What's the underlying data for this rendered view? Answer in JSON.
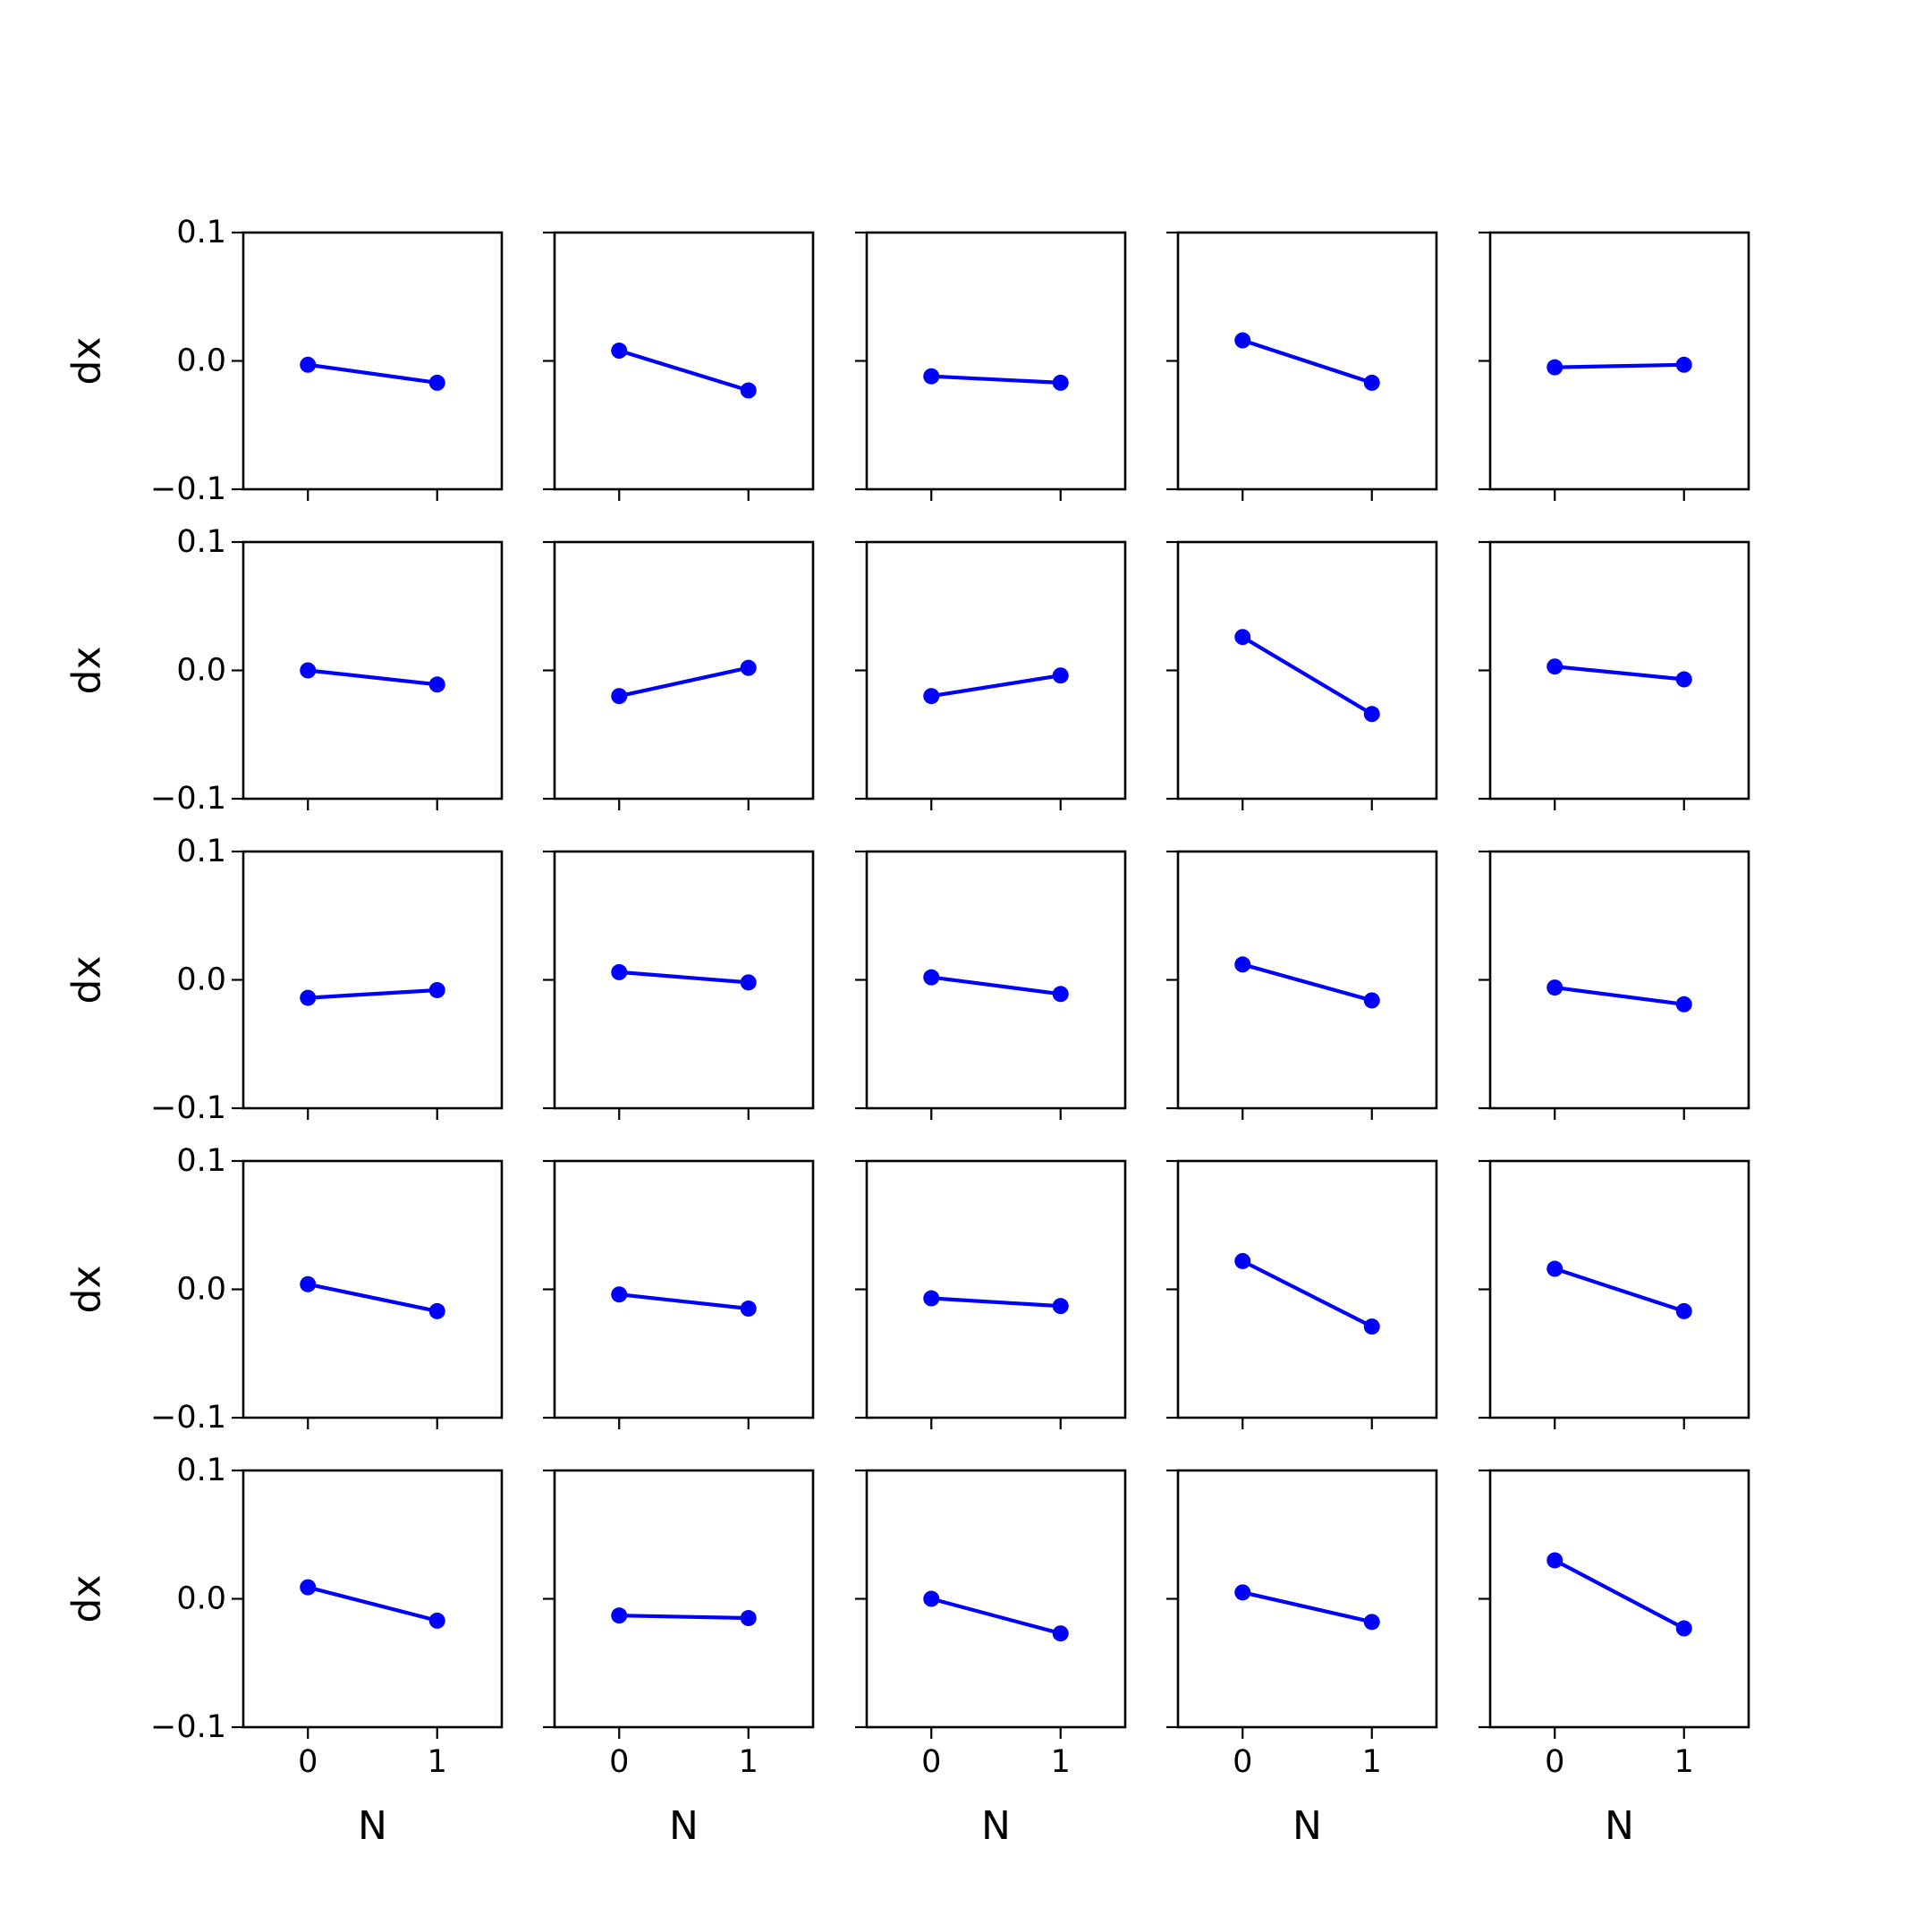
{
  "chart_data": {
    "type": "line",
    "layout": "5x5 small multiples, shared axes",
    "xlabel": "N",
    "ylabel": "dx",
    "x": [
      0,
      1
    ],
    "xticks": [
      "0",
      "1"
    ],
    "yticks": [
      "0.1",
      "0.0",
      "−0.1"
    ],
    "xlim": [
      -0.5,
      1.5
    ],
    "ylim": [
      -0.1,
      0.1
    ],
    "grid": false,
    "series_color": "#0000ff",
    "subplots": [
      [
        {
          "values": [
            -0.003,
            -0.017
          ]
        },
        {
          "values": [
            0.008,
            -0.023
          ]
        },
        {
          "values": [
            -0.012,
            -0.017
          ]
        },
        {
          "values": [
            0.016,
            -0.017
          ]
        },
        {
          "values": [
            -0.005,
            -0.003
          ]
        }
      ],
      [
        {
          "values": [
            0.0,
            -0.011
          ]
        },
        {
          "values": [
            -0.02,
            0.002
          ]
        },
        {
          "values": [
            -0.02,
            -0.004
          ]
        },
        {
          "values": [
            0.026,
            -0.034
          ]
        },
        {
          "values": [
            0.003,
            -0.007
          ]
        }
      ],
      [
        {
          "values": [
            -0.014,
            -0.008
          ]
        },
        {
          "values": [
            0.006,
            -0.002
          ]
        },
        {
          "values": [
            0.002,
            -0.011
          ]
        },
        {
          "values": [
            0.012,
            -0.016
          ]
        },
        {
          "values": [
            -0.006,
            -0.019
          ]
        }
      ],
      [
        {
          "values": [
            0.004,
            -0.017
          ]
        },
        {
          "values": [
            -0.004,
            -0.015
          ]
        },
        {
          "values": [
            -0.007,
            -0.013
          ]
        },
        {
          "values": [
            0.022,
            -0.029
          ]
        },
        {
          "values": [
            0.016,
            -0.017
          ]
        }
      ],
      [
        {
          "values": [
            0.009,
            -0.017
          ]
        },
        {
          "values": [
            -0.013,
            -0.015
          ]
        },
        {
          "values": [
            0.0,
            -0.027
          ]
        },
        {
          "values": [
            0.005,
            -0.018
          ]
        },
        {
          "values": [
            0.03,
            -0.023
          ]
        }
      ]
    ]
  }
}
